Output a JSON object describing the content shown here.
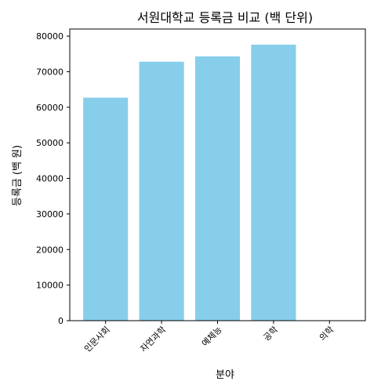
{
  "chart_data": {
    "type": "bar",
    "title": "서원대학교 등록금 비교 (백 단위)",
    "xlabel": "분야",
    "ylabel": "등록금 (백 원)",
    "categories": [
      "인문사회",
      "자연과학",
      "예체능",
      "공학",
      "의학"
    ],
    "values": [
      62700,
      72800,
      74300,
      77600,
      0
    ],
    "ylim": [
      0,
      82000
    ],
    "yticks": [
      0,
      10000,
      20000,
      30000,
      40000,
      50000,
      60000,
      70000,
      80000
    ],
    "bar_color": "#87CEEB",
    "grid": false,
    "xtick_rotation": 45
  }
}
